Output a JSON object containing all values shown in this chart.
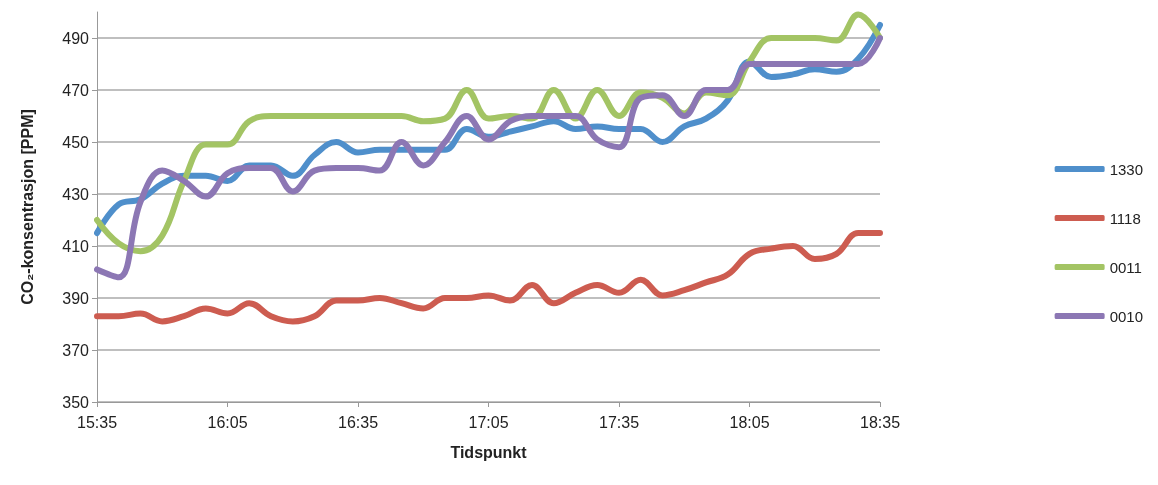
{
  "chart_data": {
    "type": "line",
    "xlabel": "Tidspunkt",
    "ylabel": "CO₂-konsentrasjon [PPM]",
    "categories": [
      "15:35",
      null,
      null,
      null,
      null,
      null,
      "16:05",
      null,
      null,
      null,
      null,
      null,
      "16:35",
      null,
      null,
      null,
      null,
      null,
      "17:05",
      null,
      null,
      null,
      null,
      null,
      "17:35",
      null,
      null,
      null,
      null,
      null,
      "18:05",
      null,
      null,
      null,
      null,
      null,
      "18:35"
    ],
    "ylim": [
      350,
      500
    ],
    "yticks": [
      350,
      370,
      390,
      410,
      430,
      450,
      470,
      490
    ],
    "grid": "y",
    "legend": "right",
    "marker": "none",
    "line_style": "solid",
    "series": [
      {
        "name": "1330",
        "color": "#4f8fcb",
        "values": [
          415,
          426,
          428,
          434,
          437,
          437,
          435,
          441,
          441,
          437,
          445,
          450,
          446,
          447,
          447,
          447,
          447,
          455,
          452,
          454,
          456,
          458,
          455,
          456,
          455,
          455,
          450,
          456,
          459,
          466,
          481,
          475,
          476,
          478,
          477,
          482,
          495
        ]
      },
      {
        "name": "1118",
        "color": "#cd5c50",
        "values": [
          383,
          383,
          384,
          381,
          383,
          386,
          384,
          388,
          383,
          381,
          383,
          389,
          389,
          390,
          388,
          386,
          390,
          390,
          391,
          389,
          395,
          388,
          392,
          395,
          392,
          397,
          391,
          393,
          396,
          399,
          407,
          409,
          410,
          405,
          407,
          415,
          415
        ]
      },
      {
        "name": "0011",
        "color": "#a3c464",
        "values": [
          420,
          411,
          408,
          414,
          435,
          449,
          449,
          458,
          460,
          460,
          460,
          460,
          460,
          460,
          460,
          458,
          459,
          470,
          459,
          460,
          459,
          470,
          459,
          470,
          460,
          469,
          467,
          461,
          469,
          468,
          481,
          490,
          490,
          490,
          489,
          499,
          490
        ]
      },
      {
        "name": "0010",
        "color": "#8c77b4",
        "values": [
          401,
          398,
          427,
          439,
          435,
          429,
          438,
          440,
          440,
          431,
          439,
          440,
          440,
          439,
          450,
          441,
          450,
          460,
          451,
          458,
          460,
          460,
          460,
          451,
          448,
          467,
          468,
          460,
          470,
          470,
          480,
          480,
          480,
          480,
          480,
          480,
          490
        ]
      }
    ]
  }
}
